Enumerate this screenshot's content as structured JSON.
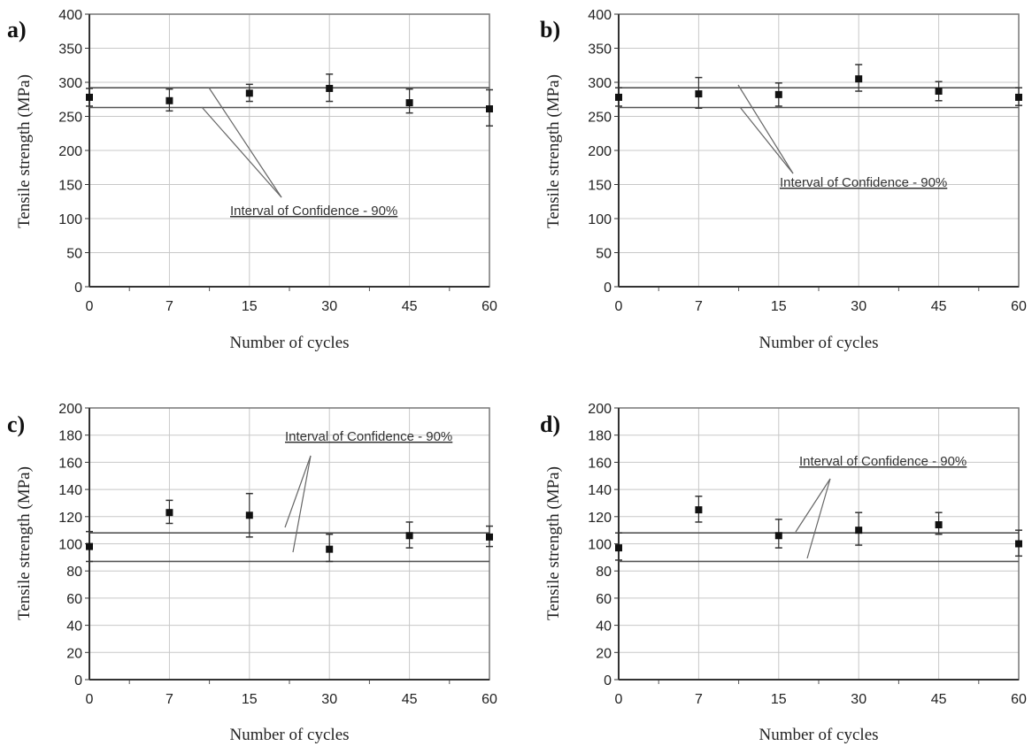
{
  "chart_data": [
    {
      "panel_label": "a)",
      "type": "scatter",
      "x": [
        0,
        7,
        15,
        30,
        45,
        60
      ],
      "y": [
        278,
        273,
        284,
        291,
        270,
        261
      ],
      "err_lower": [
        265,
        258,
        272,
        272,
        255,
        236
      ],
      "err_upper": [
        291,
        290,
        297,
        312,
        290,
        289
      ],
      "xlabel": "Number of cycles",
      "ylabel": "Tensile strength (MPa)",
      "xlim": [
        0,
        60
      ],
      "ylim": [
        0,
        400
      ],
      "y_ticks": [
        0,
        50,
        100,
        150,
        200,
        250,
        300,
        350,
        400
      ],
      "x_ticks": [
        0,
        7,
        15,
        30,
        45,
        60
      ],
      "grid": true,
      "confidence_interval": [
        263,
        292
      ],
      "annotation": "Interval of Confidence - 90%"
    },
    {
      "panel_label": "b)",
      "type": "scatter",
      "x": [
        0,
        7,
        15,
        30,
        45,
        60
      ],
      "y": [
        278,
        283,
        282,
        305,
        287,
        278
      ],
      "err_lower": [
        265,
        262,
        265,
        287,
        273,
        266
      ],
      "err_upper": [
        292,
        307,
        299,
        326,
        301,
        292
      ],
      "xlabel": "Number of cycles",
      "ylabel": "Tensile strength (MPa)",
      "xlim": [
        0,
        60
      ],
      "ylim": [
        0,
        400
      ],
      "y_ticks": [
        0,
        50,
        100,
        150,
        200,
        250,
        300,
        350,
        400
      ],
      "x_ticks": [
        0,
        7,
        15,
        30,
        45,
        60
      ],
      "grid": true,
      "confidence_interval": [
        263,
        292
      ],
      "annotation": "Interval of Confidence - 90%"
    },
    {
      "panel_label": "c)",
      "type": "scatter",
      "x": [
        0,
        7,
        15,
        30,
        45,
        60
      ],
      "y": [
        98,
        123,
        121,
        96,
        106,
        105
      ],
      "err_lower": [
        87,
        115,
        105,
        87,
        97,
        98
      ],
      "err_upper": [
        109,
        132,
        137,
        107,
        116,
        113
      ],
      "xlabel": "Number of cycles",
      "ylabel": "Tensile strength (MPa)",
      "xlim": [
        0,
        60
      ],
      "ylim": [
        0,
        200
      ],
      "y_ticks": [
        0,
        20,
        40,
        60,
        80,
        100,
        120,
        140,
        160,
        180,
        200
      ],
      "x_ticks": [
        0,
        7,
        15,
        30,
        45,
        60
      ],
      "grid": true,
      "confidence_interval": [
        87,
        108
      ],
      "annotation": "Interval of Confidence - 90%"
    },
    {
      "panel_label": "d)",
      "type": "scatter",
      "x": [
        0,
        7,
        15,
        30,
        45,
        60
      ],
      "y": [
        97,
        125,
        106,
        110,
        114,
        100
      ],
      "err_lower": [
        88,
        116,
        97,
        99,
        107,
        91
      ],
      "err_upper": [
        108,
        135,
        118,
        123,
        123,
        110
      ],
      "xlabel": "Number of cycles",
      "ylabel": "Tensile strength (MPa)",
      "xlim": [
        0,
        60
      ],
      "ylim": [
        0,
        200
      ],
      "y_ticks": [
        0,
        20,
        40,
        60,
        80,
        100,
        120,
        140,
        160,
        180,
        200
      ],
      "x_ticks": [
        0,
        7,
        15,
        30,
        45,
        60
      ],
      "grid": true,
      "confidence_interval": [
        87,
        108
      ],
      "annotation": "Interval of Confidence - 90%"
    }
  ]
}
